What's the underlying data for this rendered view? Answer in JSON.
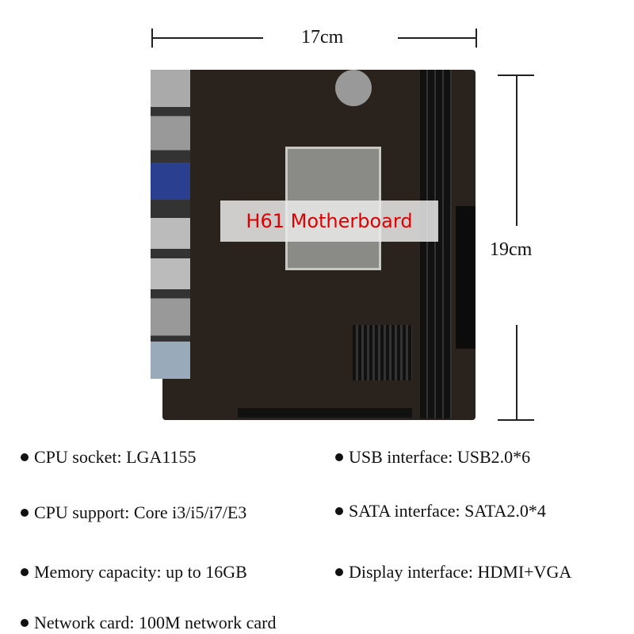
{
  "dimensions": {
    "width": "17cm",
    "height": "19cm"
  },
  "product_label": "H61 Motherboard",
  "specs": {
    "left": [
      "CPU socket: LGA1155",
      "CPU support: Core i3/i5/i7/E3",
      "Memory capacity: up to 16GB",
      "Network card: 100M network card"
    ],
    "right": [
      "USB interface: USB2.0*6",
      "SATA interface: SATA2.0*4",
      "Display interface: HDMI+VGA"
    ]
  },
  "colors": {
    "label_text": "#e00000",
    "board": "#2a221d"
  }
}
